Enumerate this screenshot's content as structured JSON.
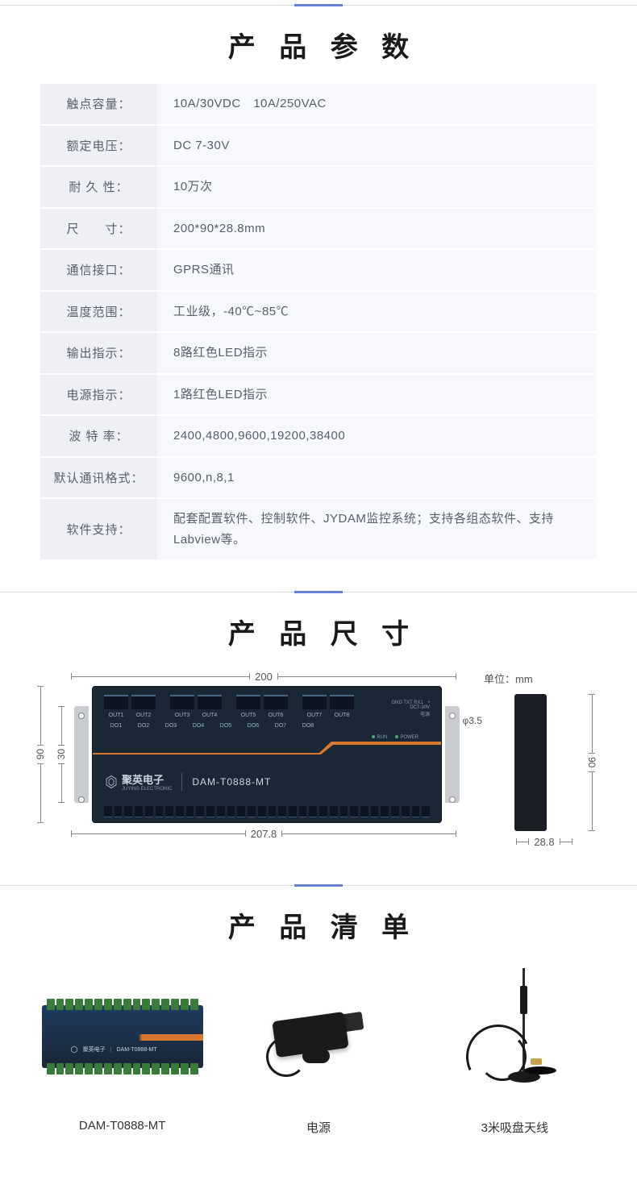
{
  "sections": {
    "specs_title": "产 品 参 数",
    "dimensions_title": "产 品 尺 寸",
    "list_title": "产 品 清 单"
  },
  "specs": [
    {
      "label": "触点容量：",
      "value": "10A/30VDC　10A/250VAC"
    },
    {
      "label": "额定电压：",
      "value": "DC 7-30V"
    },
    {
      "label": "耐 久 性：",
      "value": "10万次"
    },
    {
      "label": "尺　　寸：",
      "value": "200*90*28.8mm"
    },
    {
      "label": "通信接口：",
      "value": "GPRS通讯"
    },
    {
      "label": "温度范围：",
      "value": "工业级，-40℃~85℃"
    },
    {
      "label": "输出指示：",
      "value": "8路红色LED指示"
    },
    {
      "label": "电源指示：",
      "value": "1路红色LED指示"
    },
    {
      "label": "波 特 率：",
      "value": "2400,4800,9600,19200,38400"
    },
    {
      "label": "默认通讯格式：",
      "value": "9600,n,8,1"
    },
    {
      "label": "软件支持：",
      "value": "配套配置软件、控制软件、JYDAM监控系统；支持各组态软件、支持Labview等。"
    }
  ],
  "dimensions": {
    "unit_label": "单位：mm",
    "width_inner": "200",
    "width_outer": "207.8",
    "height_outer": "90",
    "height_inner": "30",
    "depth": "28.8",
    "side_height": "90",
    "hole_diameter": "φ3.5",
    "model": "DAM-T0888-MT",
    "brand_cn": "聚英电子",
    "brand_en": "JUYING ELECTRONIC",
    "outputs": [
      "OUT1",
      "OUT2",
      "OUT3",
      "OUT4",
      "OUT5",
      "OUT6",
      "OUT7",
      "OUT8"
    ],
    "dos": [
      "DO1",
      "DO2",
      "DO3",
      "DO4",
      "DO5",
      "DO6",
      "DO7",
      "DO8"
    ],
    "run_label": "RUN",
    "power_label": "POWER",
    "top_right_labels": "GND TXT RX1　•\nDC7-30V\n电源"
  },
  "product_list": [
    {
      "name": "DAM-T0888-MT",
      "type": "device"
    },
    {
      "name": "电源",
      "type": "adapter"
    },
    {
      "name": "3米吸盘天线",
      "type": "antenna"
    }
  ],
  "colors": {
    "accent": "#6b7fd8",
    "table_label_bg": "#eef0f5",
    "table_value_bg": "#f7f8fb",
    "text_muted": "#56606e",
    "device_dark": "#1a2735",
    "device_blue": "#1e3a5f",
    "orange": "#d87830"
  }
}
